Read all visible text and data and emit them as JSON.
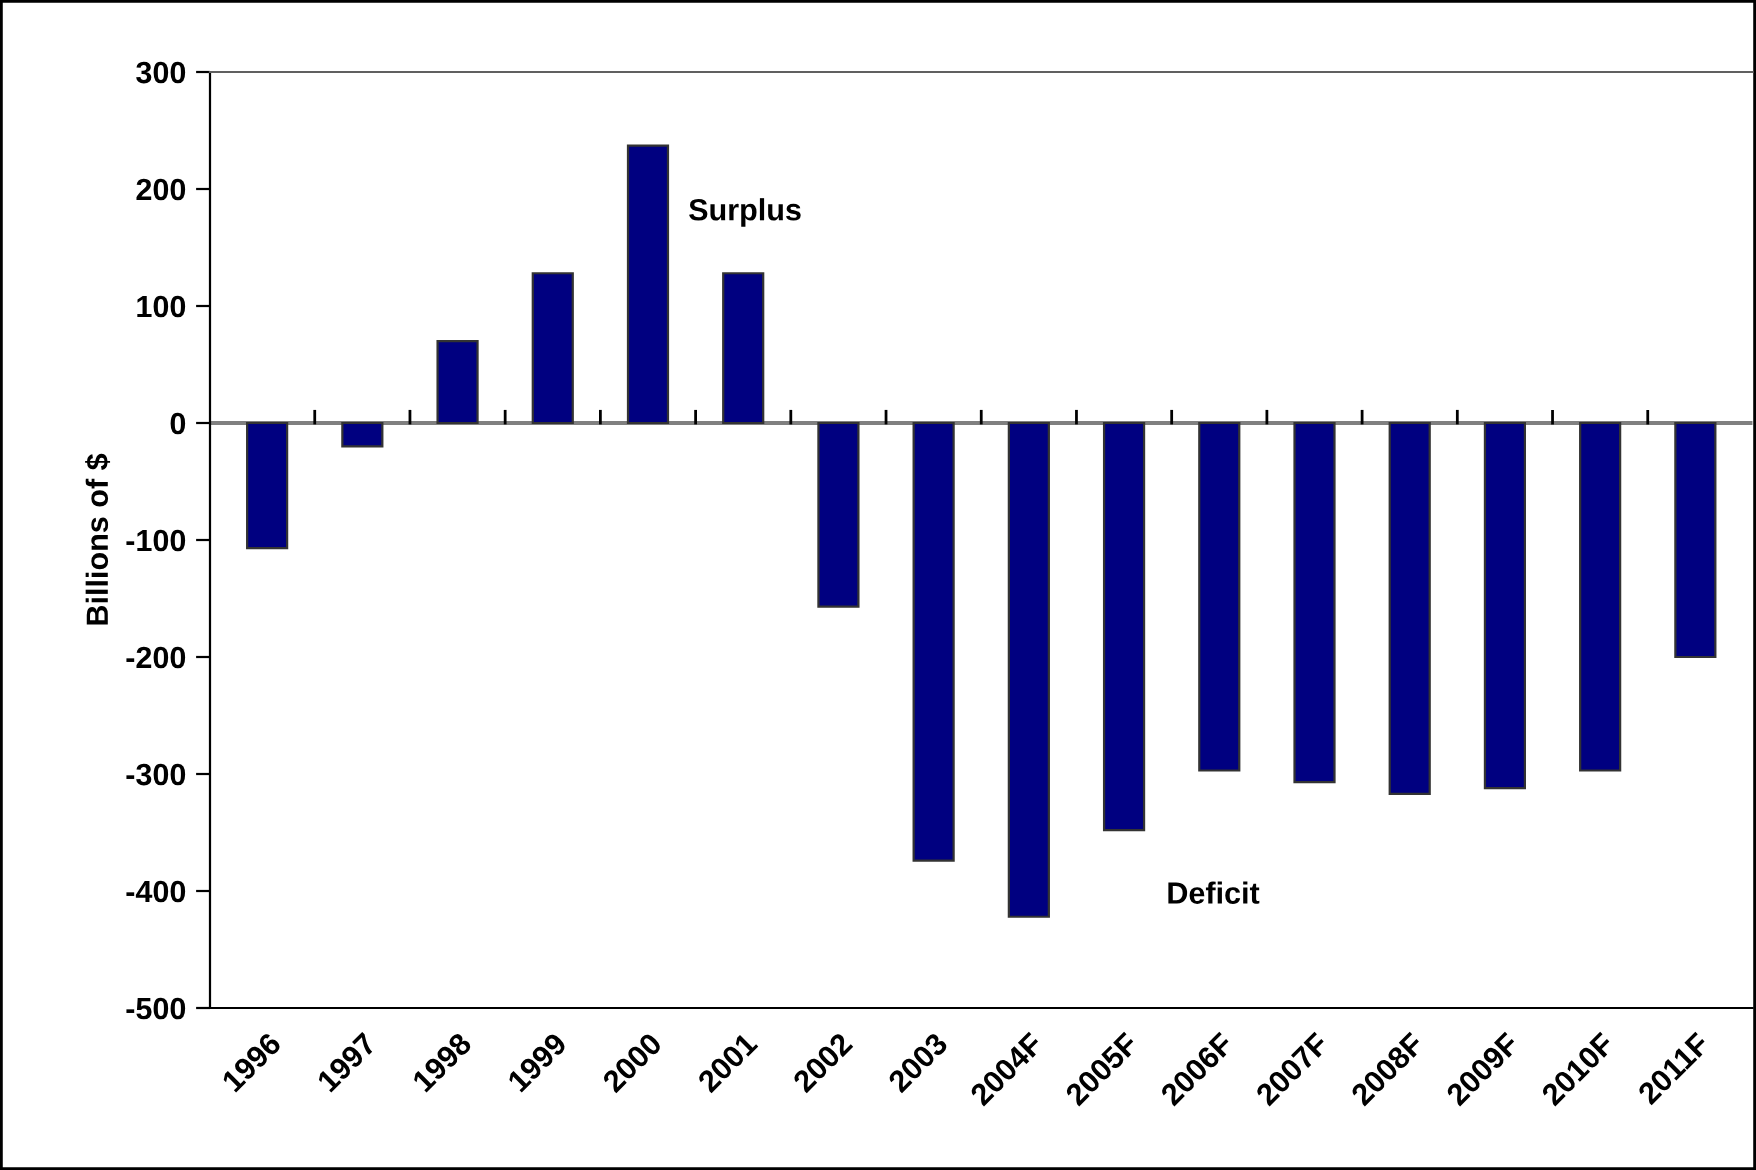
{
  "chart_data": {
    "type": "bar",
    "categories": [
      "1996",
      "1997",
      "1998",
      "1999",
      "2000",
      "2001",
      "2002",
      "2003",
      "2004F",
      "2005F",
      "2006F",
      "2007F",
      "2008F",
      "2009F",
      "2010F",
      "2011F"
    ],
    "values": [
      -107,
      -20,
      70,
      128,
      237,
      128,
      -157,
      -374,
      -422,
      -348,
      -297,
      -307,
      -317,
      -312,
      -297,
      -200
    ],
    "color": "#000080",
    "ylabel": "Billions of $",
    "ylim": [
      -500,
      300
    ],
    "yticks": [
      -500,
      -400,
      -300,
      -200,
      -100,
      0,
      100,
      200,
      300
    ],
    "grid": false,
    "annotations": [
      "Surplus",
      "Deficit"
    ],
    "ref_lines": [
      {
        "axis": "y",
        "value": 0,
        "color": "#808080"
      }
    ]
  }
}
